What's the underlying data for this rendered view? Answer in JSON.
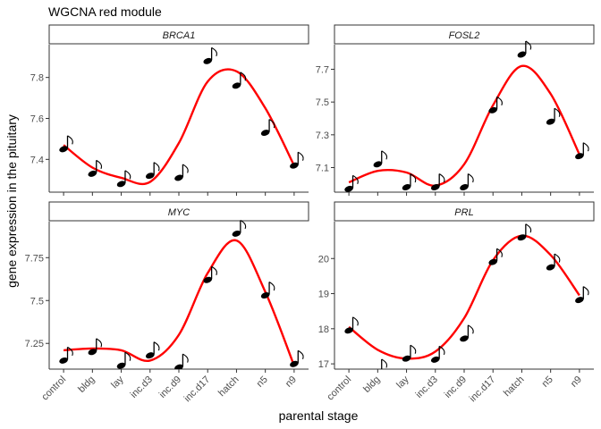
{
  "title": "WGCNA red module",
  "xlabel": "parental stage",
  "ylabel": "gene expression  in the pituitary",
  "colors": {
    "curve": "#ff0000",
    "note": "#000000",
    "axis": "#333333",
    "strip_fill": "#ffffff"
  },
  "marker_icon": "music-note-icon",
  "chart_data": [
    {
      "type": "scatter",
      "facet": "BRCA1",
      "categories": [
        "control",
        "bldg",
        "lay",
        "inc.d3",
        "inc.d9",
        "inc.d17",
        "hatch",
        "n5",
        "n9"
      ],
      "values": [
        7.45,
        7.33,
        7.28,
        7.32,
        7.31,
        7.88,
        7.76,
        7.53,
        7.37
      ],
      "smooth": [
        7.47,
        7.36,
        7.31,
        7.29,
        7.48,
        7.78,
        7.83,
        7.65,
        7.37
      ],
      "ylim": [
        7.24,
        7.96
      ],
      "yticks": [
        7.4,
        7.6,
        7.8
      ]
    },
    {
      "type": "scatter",
      "facet": "FOSL2",
      "categories": [
        "control",
        "bldg",
        "lay",
        "inc.d3",
        "inc.d9",
        "inc.d17",
        "hatch",
        "n5",
        "n9"
      ],
      "values": [
        6.97,
        7.12,
        6.98,
        6.98,
        6.98,
        7.45,
        7.79,
        7.38,
        7.17
      ],
      "smooth": [
        7.01,
        7.08,
        7.07,
        6.99,
        7.12,
        7.48,
        7.72,
        7.55,
        7.18
      ],
      "ylim": [
        6.95,
        7.85
      ],
      "yticks": [
        7.1,
        7.3,
        7.5,
        7.7
      ]
    },
    {
      "type": "scatter",
      "facet": "MYC",
      "categories": [
        "control",
        "bldg",
        "lay",
        "inc.d3",
        "inc.d9",
        "inc.d17",
        "hatch",
        "n5",
        "n9"
      ],
      "values": [
        7.15,
        7.2,
        7.12,
        7.18,
        7.11,
        7.62,
        7.89,
        7.53,
        7.13
      ],
      "smooth": [
        7.21,
        7.22,
        7.21,
        7.15,
        7.3,
        7.66,
        7.85,
        7.55,
        7.12
      ],
      "ylim": [
        7.1,
        7.96
      ],
      "yticks": [
        7.25,
        7.5,
        7.75
      ]
    },
    {
      "type": "scatter",
      "facet": "PRL",
      "categories": [
        "control",
        "bldg",
        "lay",
        "inc.d3",
        "inc.d9",
        "inc.d17",
        "hatch",
        "n5",
        "n9"
      ],
      "values": [
        17.95,
        16.75,
        17.15,
        17.12,
        17.72,
        19.9,
        20.6,
        19.75,
        18.82
      ],
      "smooth": [
        18.05,
        17.4,
        17.15,
        17.35,
        18.3,
        19.95,
        20.65,
        20.1,
        18.95
      ],
      "ylim": [
        16.85,
        21.05
      ],
      "yticks": [
        17,
        18,
        19,
        20
      ]
    }
  ]
}
